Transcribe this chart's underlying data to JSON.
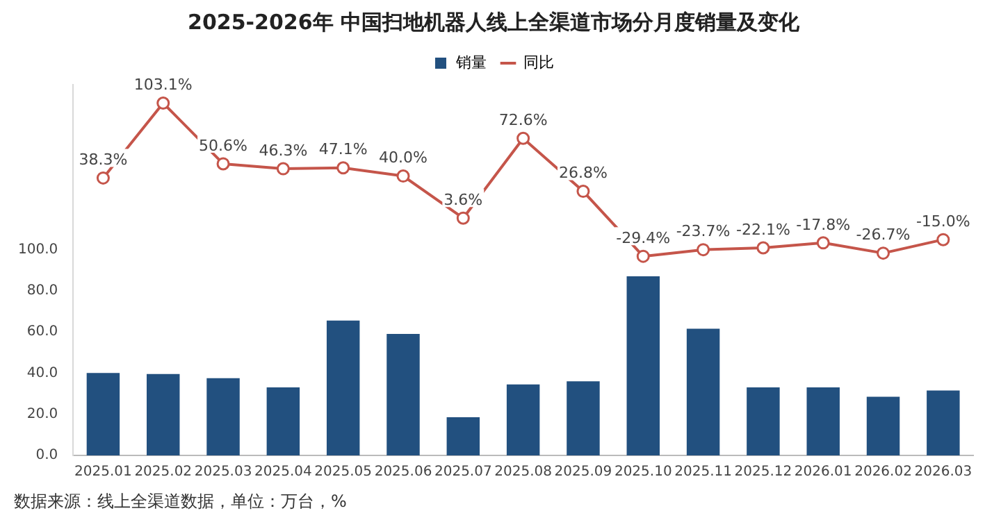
{
  "chart_data": {
    "type": "bar",
    "title": "2025-2026年 中国扫地机器人线上全渠道市场分月度销量及变化",
    "categories": [
      "2025.01",
      "2025.02",
      "2025.03",
      "2025.04",
      "2025.05",
      "2025.06",
      "2025.07",
      "2025.08",
      "2025.09",
      "2025.10",
      "2025.11",
      "2025.12",
      "2026.01",
      "2026.02",
      "2026.03"
    ],
    "series": [
      {
        "name": "销量",
        "type": "bar",
        "color": "#22507f",
        "values": [
          40,
          39.5,
          37.5,
          33,
          65.5,
          59,
          18.5,
          34.5,
          36,
          87,
          61.5,
          33,
          33,
          28.5,
          31.5
        ]
      },
      {
        "name": "同比",
        "type": "line",
        "axis": "y2",
        "color": "#c5554a",
        "marker": "circle",
        "values": [
          38.3,
          103.1,
          50.6,
          46.3,
          47.1,
          40.0,
          3.6,
          72.6,
          26.8,
          -29.4,
          -23.7,
          -22.1,
          -17.8,
          -26.7,
          -15.0
        ],
        "value_labels": [
          "38.3%",
          "103.1%",
          "50.6%",
          "46.3%",
          "47.1%",
          "40.0%",
          "3.6%",
          "72.6%",
          "26.8%",
          "-29.4%",
          "-23.7%",
          "-22.1%",
          "-17.8%",
          "-26.7%",
          "-15.0%"
        ]
      }
    ],
    "ylim": [
      0,
      180
    ],
    "yticks": [
      {
        "value": 0,
        "label": "0.0"
      },
      {
        "value": 20,
        "label": "20.0"
      },
      {
        "value": 40,
        "label": "40.0"
      },
      {
        "value": 60,
        "label": "60.0"
      },
      {
        "value": 80,
        "label": "80.0"
      },
      {
        "value": 100,
        "label": "100.0"
      }
    ],
    "tick_labels": "xy",
    "legend": "top",
    "grid": false,
    "annotations": [
      "数据来源：线上全渠道数据，单位：万台，%"
    ]
  }
}
